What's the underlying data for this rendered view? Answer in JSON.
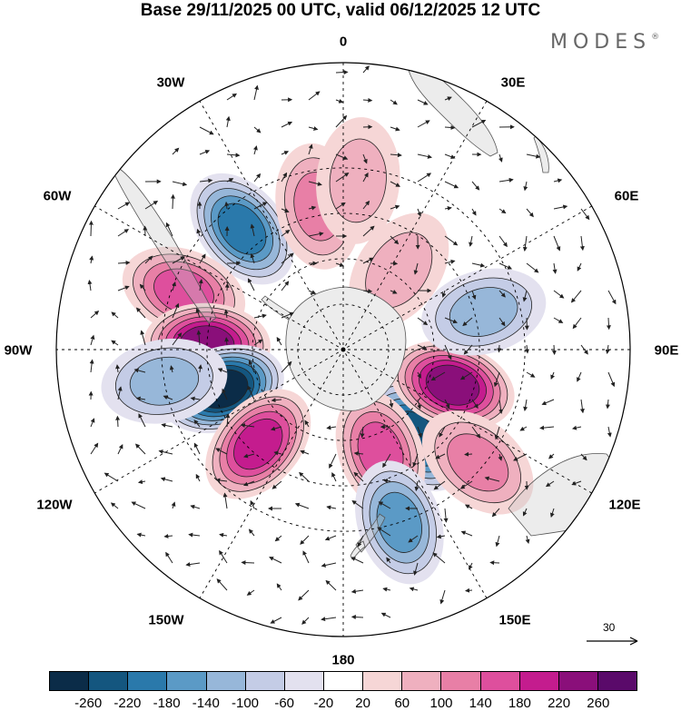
{
  "title": "Base 29/11/2025 00 UTC, valid 06/12/2025 12 UTC",
  "brand": "MODES",
  "brand_mark": "®",
  "longitude_labels": {
    "lon_0": "0",
    "lon_30e": "30E",
    "lon_60e": "60E",
    "lon_90e": "90E",
    "lon_120e": "120E",
    "lon_150e": "150E",
    "lon_180": "180",
    "lon_150w": "150W",
    "lon_120w": "120W",
    "lon_90w": "90W",
    "lon_60w": "60W",
    "lon_30w": "30W"
  },
  "reference_vector": {
    "value": "30"
  },
  "colorbar": {
    "colors": [
      "#0b2c48",
      "#14567f",
      "#2a79ab",
      "#5b9ac6",
      "#97b7d9",
      "#c4cce6",
      "#e3e1ef",
      "#ffffff",
      "#f6d6d6",
      "#efb0bf",
      "#e87fa6",
      "#de4f9d",
      "#c41c8e",
      "#8a0f7a",
      "#5a0a6a"
    ],
    "labels": [
      "-260",
      "-220",
      "-180",
      "-140",
      "-100",
      "-60",
      "-20",
      "20",
      "60",
      "100",
      "140",
      "180",
      "220",
      "260"
    ]
  },
  "map": {
    "anomaly_centers": [
      {
        "lon": -40,
        "lat": -38,
        "value": -170
      },
      {
        "lon": -10,
        "lat": -42,
        "value": 110
      },
      {
        "lon": -70,
        "lat": -34,
        "value": 150
      },
      {
        "lon": -88,
        "lat": -45,
        "value": 200
      },
      {
        "lon": -108,
        "lat": -48,
        "value": -240
      },
      {
        "lon": -138,
        "lat": -48,
        "value": 170
      },
      {
        "lon": 140,
        "lat": -53,
        "value": -230
      },
      {
        "lon": 108,
        "lat": -52,
        "value": 230
      },
      {
        "lon": 75,
        "lat": -42,
        "value": -90
      },
      {
        "lon": 35,
        "lat": -58,
        "value": 60
      },
      {
        "lon": 160,
        "lat": -54,
        "value": 120
      },
      {
        "lon": 130,
        "lat": -32,
        "value": 80
      },
      {
        "lon": 162,
        "lat": -30,
        "value": -120
      },
      {
        "lon": 5,
        "lat": -34,
        "value": 50
      },
      {
        "lon": -100,
        "lat": -30,
        "value": -80
      }
    ]
  }
}
